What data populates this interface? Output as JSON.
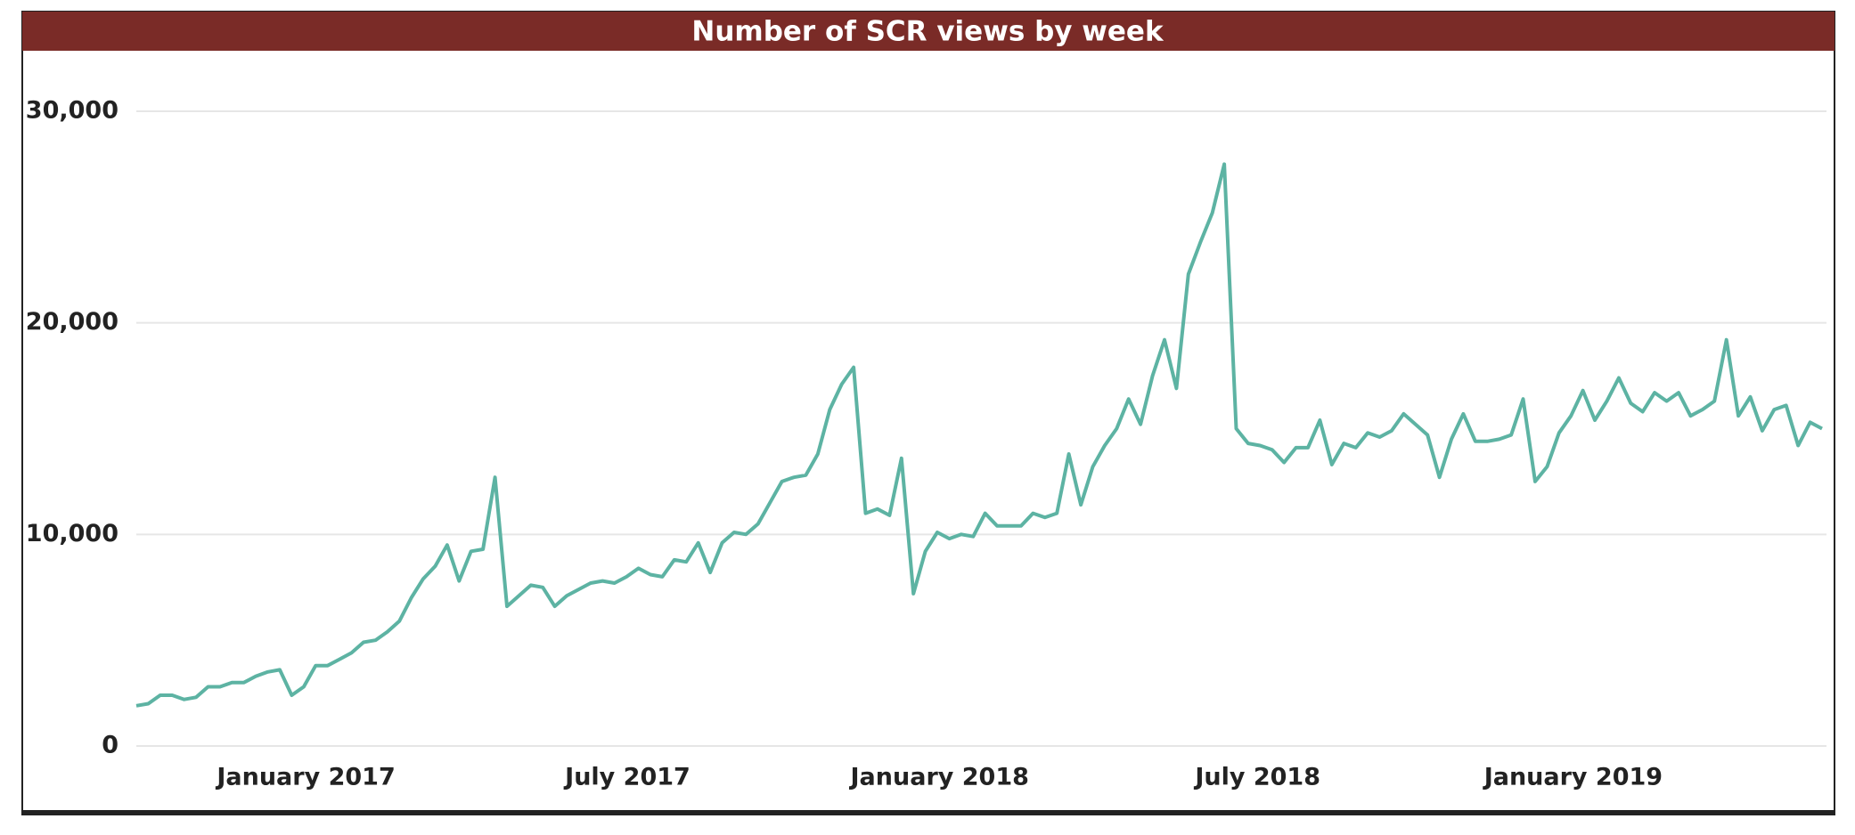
{
  "chart_data": {
    "type": "line",
    "title": "Number of SCR views by week",
    "series": [
      {
        "color": "#5db3a3",
        "values": [
          1900,
          2000,
          2400,
          2400,
          2200,
          2300,
          2800,
          2800,
          3000,
          3000,
          3300,
          3500,
          3600,
          2400,
          2800,
          3800,
          3800,
          4100,
          4400,
          4900,
          5000,
          5400,
          5900,
          7000,
          7900,
          8500,
          9500,
          7800,
          9200,
          9300,
          12700,
          6600,
          7100,
          7600,
          7500,
          6600,
          7100,
          7400,
          7700,
          7800,
          7700,
          8000,
          8400,
          8100,
          8000,
          8800,
          8700,
          9600,
          8200,
          9600,
          10100,
          10000,
          10500,
          11500,
          12500,
          12700,
          12800,
          13800,
          15900,
          17100,
          17900,
          11000,
          11200,
          10900,
          13600,
          7200,
          9200,
          10100,
          9800,
          10000,
          9900,
          11000,
          10400,
          10400,
          10400,
          11000,
          10800,
          11000,
          13800,
          11400,
          13200,
          14200,
          15000,
          16400,
          15200,
          17500,
          19200,
          16900,
          22300,
          23800,
          25200,
          27500,
          15000,
          14300,
          14200,
          14000,
          13400,
          14100,
          14100,
          15400,
          13300,
          14300,
          14100,
          14800,
          14600,
          14900,
          15700,
          15200,
          14700,
          12700,
          14500,
          15700,
          14400,
          14400,
          14500,
          14700,
          16400,
          12500,
          13200,
          14800,
          15600,
          16800,
          15400,
          16300,
          17400,
          16200,
          15800,
          16700,
          16300,
          16700,
          15600,
          15900,
          16300,
          19200,
          15600,
          16500,
          14900,
          15900,
          16100,
          14200,
          15300,
          15000
        ]
      }
    ],
    "xticks": [
      {
        "value": 14.2,
        "label": "January 2017"
      },
      {
        "value": 41.1,
        "label": "July 2017"
      },
      {
        "value": 67.2,
        "label": "January 2018"
      },
      {
        "value": 93.8,
        "label": "July 2018"
      },
      {
        "value": 120.2,
        "label": "January 2019"
      }
    ],
    "ylim": [
      0,
      30000
    ],
    "yticks": [
      0,
      {
        "value": 10000,
        "label": "10,000"
      },
      {
        "value": 20000,
        "label": "20,000"
      },
      {
        "value": 30000,
        "label": "30,000"
      }
    ],
    "grid": true
  }
}
